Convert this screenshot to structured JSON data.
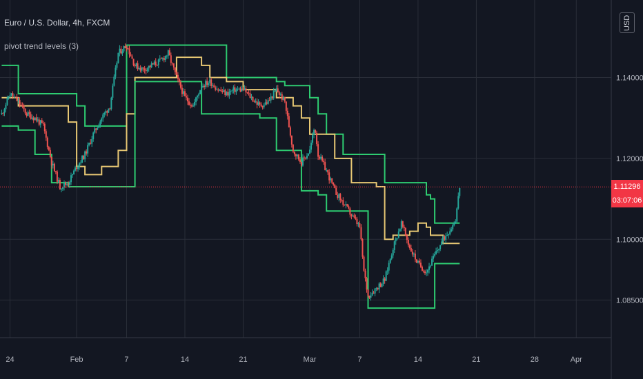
{
  "header": {
    "title": "Euro / U.S. Dollar, 4h, FXCM",
    "indicator": "pivot trend levels (3)",
    "currency": "USD"
  },
  "last_price": {
    "value": "1.11296",
    "countdown": "03:07:06"
  },
  "colors": {
    "background": "#131722",
    "grid": "#2a2e39",
    "bull": "#26a69a",
    "bear": "#ef5350",
    "upper_level": "#2ecc71",
    "mid_level": "#e8c874",
    "price_line": "#f23645",
    "axis_text": "#b2b5be"
  },
  "chart_data": {
    "type": "candlestick",
    "y_ticks": [
      {
        "value": 1.14,
        "label": "1.14000"
      },
      {
        "value": 1.12,
        "label": "1.12000"
      },
      {
        "value": 1.1,
        "label": "1.10000"
      },
      {
        "value": 1.085,
        "label": "1.08500"
      }
    ],
    "x_ticks": [
      {
        "day": 0,
        "label": "24"
      },
      {
        "day": 8,
        "label": "Feb"
      },
      {
        "day": 14,
        "label": "7"
      },
      {
        "day": 21,
        "label": "14"
      },
      {
        "day": 28,
        "label": "21"
      },
      {
        "day": 36,
        "label": "Mar"
      },
      {
        "day": 42,
        "label": "7"
      },
      {
        "day": 49,
        "label": "14"
      },
      {
        "day": 56,
        "label": "21"
      },
      {
        "day": 63,
        "label": "28"
      },
      {
        "day": 68,
        "label": "Apr"
      }
    ],
    "ylim": [
      1.076,
      1.152
    ],
    "series": [
      {
        "name": "upper",
        "values": [
          [
            -1,
            1.143
          ],
          [
            0,
            1.143
          ],
          [
            1,
            1.136
          ],
          [
            8,
            1.133
          ],
          [
            9,
            1.128
          ],
          [
            14,
            1.148
          ],
          [
            15,
            1.148
          ],
          [
            25,
            1.148
          ],
          [
            26,
            1.14
          ],
          [
            32,
            1.139
          ],
          [
            33,
            1.138
          ],
          [
            36,
            1.135
          ],
          [
            37,
            1.131
          ],
          [
            38,
            1.126
          ],
          [
            40,
            1.121
          ],
          [
            44,
            1.121
          ],
          [
            45,
            1.114
          ],
          [
            50,
            1.111
          ],
          [
            50.5,
            1.11
          ],
          [
            51,
            1.104
          ],
          [
            54,
            1.104
          ]
        ]
      },
      {
        "name": "mid",
        "values": [
          [
            -1,
            1.135
          ],
          [
            1,
            1.133
          ],
          [
            7,
            1.129
          ],
          [
            8,
            1.118
          ],
          [
            9,
            1.116
          ],
          [
            11,
            1.118
          ],
          [
            13,
            1.122
          ],
          [
            14,
            1.131
          ],
          [
            15,
            1.14
          ],
          [
            20,
            1.145
          ],
          [
            23,
            1.143
          ],
          [
            24,
            1.14
          ],
          [
            26,
            1.139
          ],
          [
            28,
            1.137
          ],
          [
            32,
            1.135
          ],
          [
            34,
            1.133
          ],
          [
            35,
            1.13
          ],
          [
            36,
            1.126
          ],
          [
            39,
            1.12
          ],
          [
            41,
            1.114
          ],
          [
            44,
            1.113
          ],
          [
            45,
            1.1
          ],
          [
            46,
            1.101
          ],
          [
            48,
            1.102
          ],
          [
            49,
            1.104
          ],
          [
            50,
            1.103
          ],
          [
            50.5,
            1.101
          ],
          [
            52,
            1.099
          ],
          [
            54,
            1.099
          ]
        ]
      },
      {
        "name": "lower",
        "values": [
          [
            -1,
            1.128
          ],
          [
            1,
            1.127
          ],
          [
            3,
            1.121
          ],
          [
            5,
            1.114
          ],
          [
            7,
            1.113
          ],
          [
            14,
            1.113
          ],
          [
            15,
            1.139
          ],
          [
            21,
            1.139
          ],
          [
            23,
            1.131
          ],
          [
            28,
            1.131
          ],
          [
            30,
            1.13
          ],
          [
            32,
            1.122
          ],
          [
            35,
            1.112
          ],
          [
            37,
            1.111
          ],
          [
            38,
            1.107
          ],
          [
            42,
            1.107
          ],
          [
            43,
            1.083
          ],
          [
            50,
            1.083
          ],
          [
            51,
            1.094
          ],
          [
            54,
            1.094
          ]
        ]
      }
    ],
    "price_path": [
      [
        -1,
        1.131
      ],
      [
        0,
        1.136
      ],
      [
        1,
        1.134
      ],
      [
        2,
        1.131
      ],
      [
        3,
        1.13
      ],
      [
        4,
        1.128
      ],
      [
        5,
        1.119
      ],
      [
        6,
        1.113
      ],
      [
        7,
        1.114
      ],
      [
        8,
        1.118
      ],
      [
        9,
        1.121
      ],
      [
        10,
        1.126
      ],
      [
        11,
        1.13
      ],
      [
        12,
        1.133
      ],
      [
        13,
        1.146
      ],
      [
        14,
        1.148
      ],
      [
        15,
        1.143
      ],
      [
        16,
        1.142
      ],
      [
        17,
        1.143
      ],
      [
        18,
        1.144
      ],
      [
        19,
        1.146
      ],
      [
        20,
        1.14
      ],
      [
        21,
        1.135
      ],
      [
        22,
        1.133
      ],
      [
        23,
        1.138
      ],
      [
        24,
        1.139
      ],
      [
        25,
        1.137
      ],
      [
        26,
        1.136
      ],
      [
        27,
        1.137
      ],
      [
        28,
        1.137
      ],
      [
        29,
        1.135
      ],
      [
        30,
        1.133
      ],
      [
        31,
        1.134
      ],
      [
        32,
        1.137
      ],
      [
        33,
        1.134
      ],
      [
        34,
        1.122
      ],
      [
        35,
        1.119
      ],
      [
        36,
        1.122
      ],
      [
        36.6,
        1.128
      ],
      [
        37,
        1.121
      ],
      [
        38,
        1.117
      ],
      [
        39,
        1.112
      ],
      [
        40,
        1.109
      ],
      [
        41,
        1.106
      ],
      [
        42,
        1.103
      ],
      [
        42.5,
        1.092
      ],
      [
        43,
        1.086
      ],
      [
        44,
        1.088
      ],
      [
        45,
        1.09
      ],
      [
        46,
        1.098
      ],
      [
        47,
        1.104
      ],
      [
        48,
        1.098
      ],
      [
        49,
        1.094
      ],
      [
        50,
        1.092
      ],
      [
        51,
        1.096
      ],
      [
        52,
        1.1
      ],
      [
        53,
        1.103
      ],
      [
        53.5,
        1.105
      ],
      [
        54,
        1.113
      ]
    ]
  }
}
